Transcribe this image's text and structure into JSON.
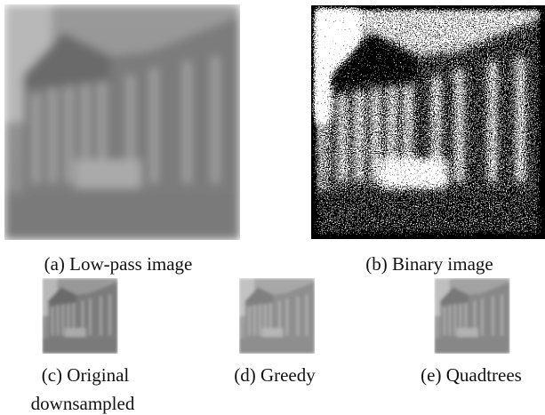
{
  "figure": {
    "panels": [
      {
        "caption_lines": [
          "(a) Low-pass image"
        ]
      },
      {
        "caption_lines": [
          "(b) Binary image"
        ]
      },
      {
        "caption_lines": [
          "(c) Original",
          "downsampled"
        ]
      },
      {
        "caption_lines": [
          "(d) Greedy"
        ]
      },
      {
        "caption_lines": [
          "(e) Quadtrees"
        ]
      }
    ]
  }
}
